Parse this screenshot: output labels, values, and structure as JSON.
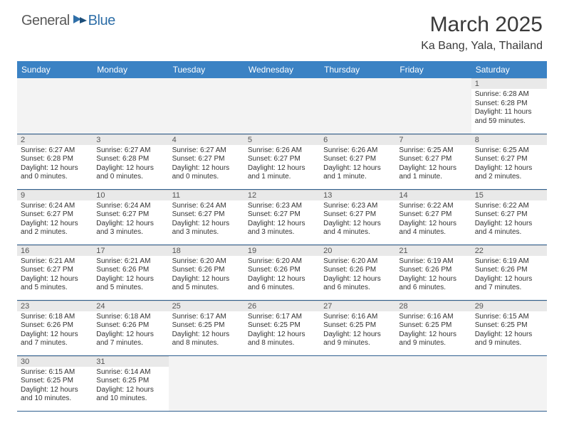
{
  "logo": {
    "general": "General",
    "blue": "Blue"
  },
  "title": {
    "month": "March 2025",
    "location": "Ka Bang, Yala, Thailand"
  },
  "columns": [
    "Sunday",
    "Monday",
    "Tuesday",
    "Wednesday",
    "Thursday",
    "Friday",
    "Saturday"
  ],
  "colors": {
    "header_bg": "#3b82c4",
    "header_text": "#ffffff",
    "daynum_bg": "#e9e9e9",
    "row_border": "#2f5f8f",
    "blank_bg": "#f3f3f3",
    "body_text": "#333333",
    "logo_gray": "#5a5a5a",
    "logo_blue": "#2f6fa8"
  },
  "weeks": [
    [
      null,
      null,
      null,
      null,
      null,
      null,
      {
        "n": "1",
        "sunrise": "Sunrise: 6:28 AM",
        "sunset": "Sunset: 6:28 PM",
        "daylight": "Daylight: 11 hours and 59 minutes."
      }
    ],
    [
      {
        "n": "2",
        "sunrise": "Sunrise: 6:27 AM",
        "sunset": "Sunset: 6:28 PM",
        "daylight": "Daylight: 12 hours and 0 minutes."
      },
      {
        "n": "3",
        "sunrise": "Sunrise: 6:27 AM",
        "sunset": "Sunset: 6:28 PM",
        "daylight": "Daylight: 12 hours and 0 minutes."
      },
      {
        "n": "4",
        "sunrise": "Sunrise: 6:27 AM",
        "sunset": "Sunset: 6:27 PM",
        "daylight": "Daylight: 12 hours and 0 minutes."
      },
      {
        "n": "5",
        "sunrise": "Sunrise: 6:26 AM",
        "sunset": "Sunset: 6:27 PM",
        "daylight": "Daylight: 12 hours and 1 minute."
      },
      {
        "n": "6",
        "sunrise": "Sunrise: 6:26 AM",
        "sunset": "Sunset: 6:27 PM",
        "daylight": "Daylight: 12 hours and 1 minute."
      },
      {
        "n": "7",
        "sunrise": "Sunrise: 6:25 AM",
        "sunset": "Sunset: 6:27 PM",
        "daylight": "Daylight: 12 hours and 1 minute."
      },
      {
        "n": "8",
        "sunrise": "Sunrise: 6:25 AM",
        "sunset": "Sunset: 6:27 PM",
        "daylight": "Daylight: 12 hours and 2 minutes."
      }
    ],
    [
      {
        "n": "9",
        "sunrise": "Sunrise: 6:24 AM",
        "sunset": "Sunset: 6:27 PM",
        "daylight": "Daylight: 12 hours and 2 minutes."
      },
      {
        "n": "10",
        "sunrise": "Sunrise: 6:24 AM",
        "sunset": "Sunset: 6:27 PM",
        "daylight": "Daylight: 12 hours and 3 minutes."
      },
      {
        "n": "11",
        "sunrise": "Sunrise: 6:24 AM",
        "sunset": "Sunset: 6:27 PM",
        "daylight": "Daylight: 12 hours and 3 minutes."
      },
      {
        "n": "12",
        "sunrise": "Sunrise: 6:23 AM",
        "sunset": "Sunset: 6:27 PM",
        "daylight": "Daylight: 12 hours and 3 minutes."
      },
      {
        "n": "13",
        "sunrise": "Sunrise: 6:23 AM",
        "sunset": "Sunset: 6:27 PM",
        "daylight": "Daylight: 12 hours and 4 minutes."
      },
      {
        "n": "14",
        "sunrise": "Sunrise: 6:22 AM",
        "sunset": "Sunset: 6:27 PM",
        "daylight": "Daylight: 12 hours and 4 minutes."
      },
      {
        "n": "15",
        "sunrise": "Sunrise: 6:22 AM",
        "sunset": "Sunset: 6:27 PM",
        "daylight": "Daylight: 12 hours and 4 minutes."
      }
    ],
    [
      {
        "n": "16",
        "sunrise": "Sunrise: 6:21 AM",
        "sunset": "Sunset: 6:27 PM",
        "daylight": "Daylight: 12 hours and 5 minutes."
      },
      {
        "n": "17",
        "sunrise": "Sunrise: 6:21 AM",
        "sunset": "Sunset: 6:26 PM",
        "daylight": "Daylight: 12 hours and 5 minutes."
      },
      {
        "n": "18",
        "sunrise": "Sunrise: 6:20 AM",
        "sunset": "Sunset: 6:26 PM",
        "daylight": "Daylight: 12 hours and 5 minutes."
      },
      {
        "n": "19",
        "sunrise": "Sunrise: 6:20 AM",
        "sunset": "Sunset: 6:26 PM",
        "daylight": "Daylight: 12 hours and 6 minutes."
      },
      {
        "n": "20",
        "sunrise": "Sunrise: 6:20 AM",
        "sunset": "Sunset: 6:26 PM",
        "daylight": "Daylight: 12 hours and 6 minutes."
      },
      {
        "n": "21",
        "sunrise": "Sunrise: 6:19 AM",
        "sunset": "Sunset: 6:26 PM",
        "daylight": "Daylight: 12 hours and 6 minutes."
      },
      {
        "n": "22",
        "sunrise": "Sunrise: 6:19 AM",
        "sunset": "Sunset: 6:26 PM",
        "daylight": "Daylight: 12 hours and 7 minutes."
      }
    ],
    [
      {
        "n": "23",
        "sunrise": "Sunrise: 6:18 AM",
        "sunset": "Sunset: 6:26 PM",
        "daylight": "Daylight: 12 hours and 7 minutes."
      },
      {
        "n": "24",
        "sunrise": "Sunrise: 6:18 AM",
        "sunset": "Sunset: 6:26 PM",
        "daylight": "Daylight: 12 hours and 7 minutes."
      },
      {
        "n": "25",
        "sunrise": "Sunrise: 6:17 AM",
        "sunset": "Sunset: 6:25 PM",
        "daylight": "Daylight: 12 hours and 8 minutes."
      },
      {
        "n": "26",
        "sunrise": "Sunrise: 6:17 AM",
        "sunset": "Sunset: 6:25 PM",
        "daylight": "Daylight: 12 hours and 8 minutes."
      },
      {
        "n": "27",
        "sunrise": "Sunrise: 6:16 AM",
        "sunset": "Sunset: 6:25 PM",
        "daylight": "Daylight: 12 hours and 9 minutes."
      },
      {
        "n": "28",
        "sunrise": "Sunrise: 6:16 AM",
        "sunset": "Sunset: 6:25 PM",
        "daylight": "Daylight: 12 hours and 9 minutes."
      },
      {
        "n": "29",
        "sunrise": "Sunrise: 6:15 AM",
        "sunset": "Sunset: 6:25 PM",
        "daylight": "Daylight: 12 hours and 9 minutes."
      }
    ],
    [
      {
        "n": "30",
        "sunrise": "Sunrise: 6:15 AM",
        "sunset": "Sunset: 6:25 PM",
        "daylight": "Daylight: 12 hours and 10 minutes."
      },
      {
        "n": "31",
        "sunrise": "Sunrise: 6:14 AM",
        "sunset": "Sunset: 6:25 PM",
        "daylight": "Daylight: 12 hours and 10 minutes."
      },
      null,
      null,
      null,
      null,
      null
    ]
  ]
}
